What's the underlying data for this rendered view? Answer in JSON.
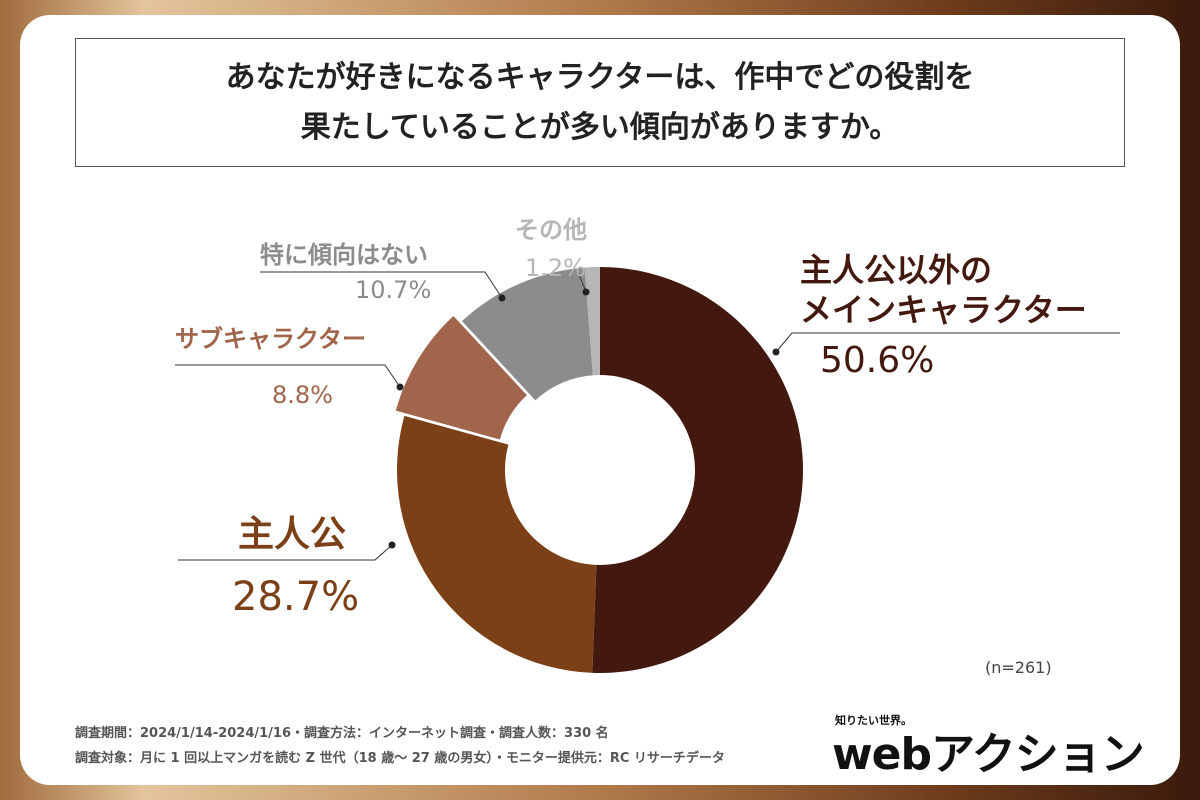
{
  "chart_data": {
    "type": "donut",
    "title": "あなたが好きになるキャラクターは、作中でどの役割を\n果たしていることが多い傾向がありますか。",
    "categories": [
      "主人公以外の\nメインキャラクター",
      "主人公",
      "サブキャラクター",
      "特に傾向はない",
      "その他"
    ],
    "values": [
      50.6,
      28.7,
      8.8,
      10.7,
      1.2
    ],
    "value_labels": [
      "50.6%",
      "28.7%",
      "8.8%",
      "10.7%",
      "1.2%"
    ],
    "colors": [
      "#43190f",
      "#7b4017",
      "#a0654a",
      "#8d8b8b",
      "#b7b5b5"
    ],
    "exploded": [
      false,
      false,
      true,
      false,
      false
    ],
    "sample_size": "(n=261)",
    "notes": [
      "調査期間：2024/1/14-2024/1/16・調査方法：インターネット調査・調査人数：330 名",
      "調査対象：月に 1 回以上マンガを読む Z 世代（18 歳〜 27 歳の男女）・モニター提供元：RC リサーチデータ"
    ],
    "logo": {
      "tagline": "知りたい世界。",
      "brand": "webアクション"
    }
  }
}
